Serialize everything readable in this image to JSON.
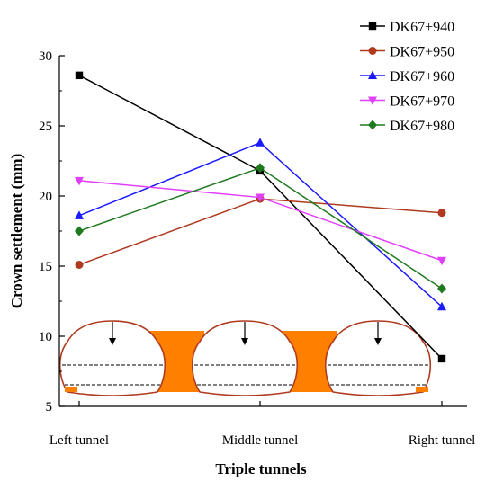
{
  "chart_data": {
    "type": "line",
    "title": "",
    "xlabel": "Triple tunnels",
    "ylabel": "Crown settlement (mm)",
    "categories": [
      "Left tunnel",
      "Middle tunnel",
      "Right tunnel"
    ],
    "ylim": [
      5,
      30
    ],
    "yticks": [
      5,
      10,
      15,
      20,
      25,
      30
    ],
    "grid": false,
    "legend_position": "top-right",
    "series": [
      {
        "name": "DK67+940",
        "values": [
          28.6,
          21.8,
          8.4
        ],
        "color": "#000000",
        "marker": "square"
      },
      {
        "name": "DK67+950",
        "values": [
          15.1,
          19.8,
          18.8
        ],
        "color": "#b03a1f",
        "marker": "circle"
      },
      {
        "name": "DK67+960",
        "values": [
          18.6,
          23.8,
          12.1
        ],
        "color": "#1a1aff",
        "marker": "triangle-up"
      },
      {
        "name": "DK67+970",
        "values": [
          21.1,
          19.9,
          15.4
        ],
        "color": "#e040fb",
        "marker": "triangle-down"
      },
      {
        "name": "DK67+980",
        "values": [
          17.5,
          22.0,
          13.4
        ],
        "color": "#1f7a1f",
        "marker": "diamond"
      }
    ]
  },
  "illustration": {
    "fill_color": "#ff8000",
    "outline_color": "#b03a1f",
    "arrow_icon": "down-arrow-icon"
  }
}
